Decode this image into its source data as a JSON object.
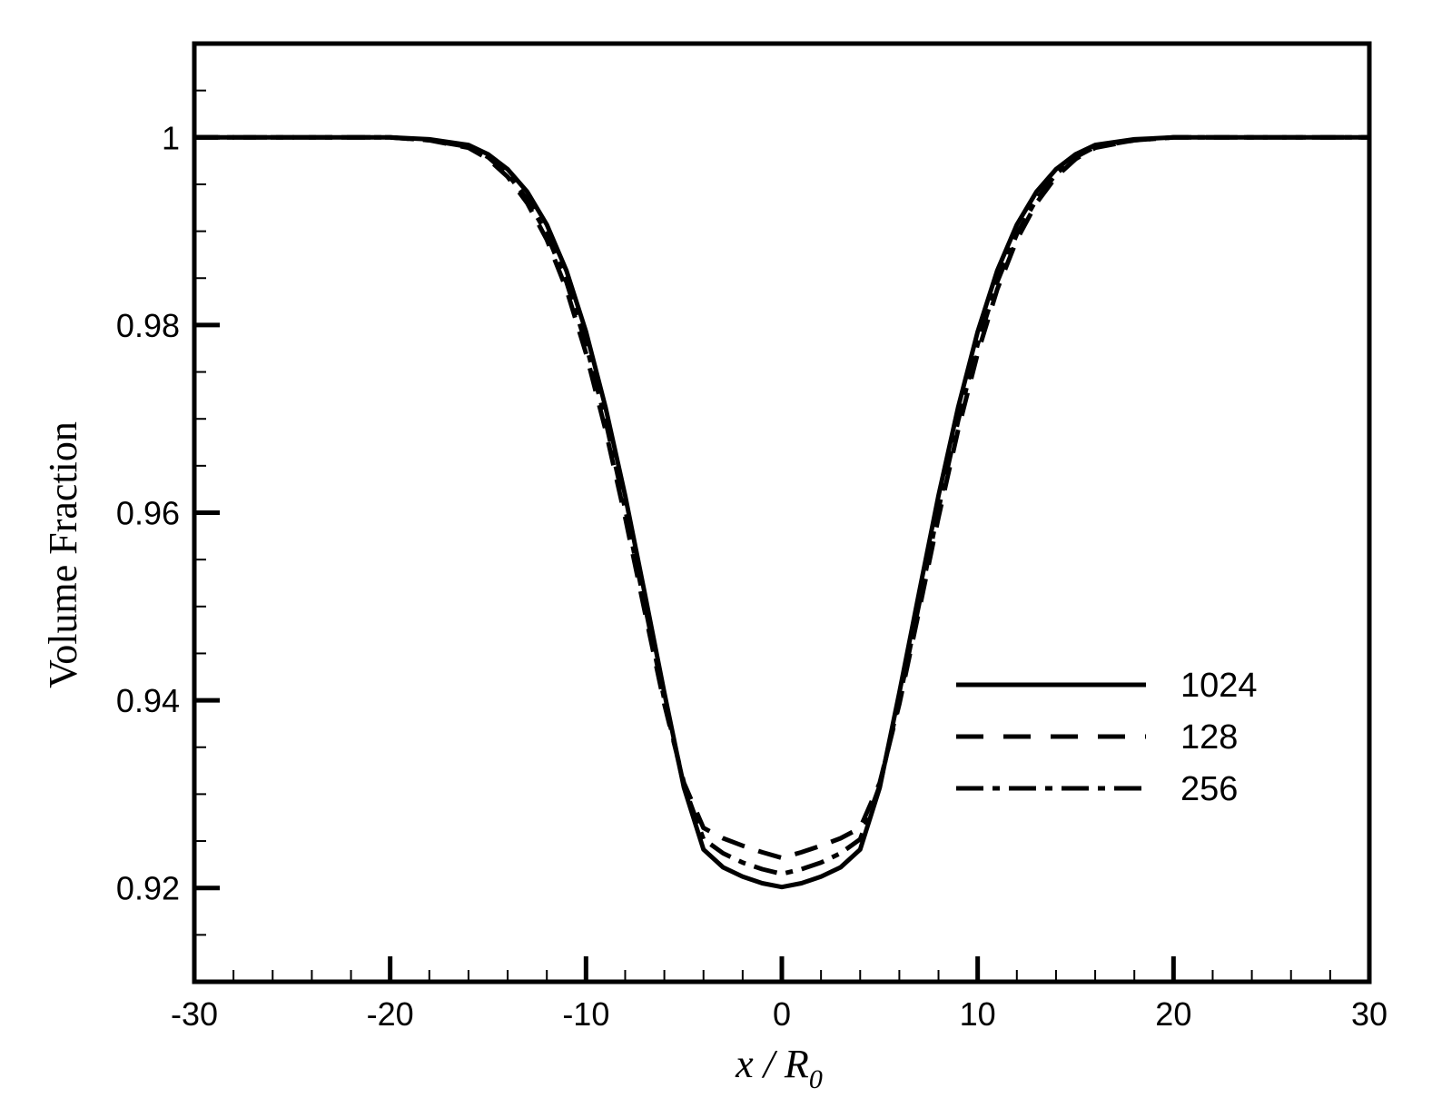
{
  "chart_data": {
    "type": "line",
    "title": "",
    "xlabel": {
      "main": "x / R",
      "subscript": "0"
    },
    "ylabel": "Volume Fraction",
    "xlim": [
      -30,
      30
    ],
    "ylim": [
      0.91,
      1.01
    ],
    "x_ticks": [
      -30,
      -20,
      -10,
      0,
      10,
      20,
      30
    ],
    "x_tick_labels": [
      "-30",
      "-20",
      "-10",
      "0",
      "10",
      "20",
      "30"
    ],
    "y_ticks": [
      0.92,
      0.94,
      0.96,
      0.98,
      1.0
    ],
    "y_tick_labels": [
      "0.92",
      "0.94",
      "0.96",
      "0.98",
      "1"
    ],
    "grid": false,
    "legend_position": "center-right",
    "series": [
      {
        "name": "1024",
        "style": "solid",
        "color": "#000000",
        "x": [
          -30,
          -20,
          -18,
          -16,
          -15,
          -14,
          -13,
          -12,
          -11,
          -10,
          -9,
          -8,
          -7,
          -6,
          -5,
          -4,
          -3,
          -2,
          -1,
          0,
          1,
          2,
          3,
          4,
          5,
          6,
          7,
          8,
          9,
          10,
          11,
          12,
          13,
          14,
          15,
          16,
          18,
          20,
          30
        ],
        "y": [
          1.0,
          1.0,
          0.9998,
          0.9992,
          0.9982,
          0.9966,
          0.9942,
          0.9907,
          0.9858,
          0.9793,
          0.9712,
          0.9618,
          0.9514,
          0.9408,
          0.9307,
          0.9241,
          0.9222,
          0.9212,
          0.9205,
          0.9201,
          0.9205,
          0.9212,
          0.9222,
          0.9241,
          0.9307,
          0.9408,
          0.9514,
          0.9618,
          0.9712,
          0.9793,
          0.9858,
          0.9907,
          0.9942,
          0.9966,
          0.9982,
          0.9992,
          0.9998,
          1.0,
          1.0
        ]
      },
      {
        "name": "128",
        "style": "dashed",
        "color": "#000000",
        "x": [
          -30,
          -20,
          -18,
          -16,
          -15,
          -14,
          -13,
          -12,
          -11,
          -10,
          -9,
          -8,
          -7,
          -6,
          -5,
          -4,
          -3,
          -2,
          -1,
          0,
          1,
          2,
          3,
          4,
          5,
          6,
          7,
          8,
          9,
          10,
          11,
          12,
          13,
          14,
          15,
          16,
          18,
          20,
          30
        ],
        "y": [
          1.0,
          1.0,
          0.9997,
          0.9989,
          0.9977,
          0.9958,
          0.993,
          0.9891,
          0.9838,
          0.977,
          0.9688,
          0.9595,
          0.9495,
          0.9396,
          0.9312,
          0.9264,
          0.9253,
          0.9245,
          0.9238,
          0.9232,
          0.9238,
          0.9245,
          0.9253,
          0.9264,
          0.9312,
          0.9396,
          0.9495,
          0.9595,
          0.9688,
          0.977,
          0.9838,
          0.9891,
          0.993,
          0.9958,
          0.9977,
          0.9989,
          0.9997,
          1.0,
          1.0
        ]
      },
      {
        "name": "256",
        "style": "dashdot",
        "color": "#000000",
        "x": [
          -30,
          -20,
          -18,
          -16,
          -15,
          -14,
          -13,
          -12,
          -11,
          -10,
          -9,
          -8,
          -7,
          -6,
          -5,
          -4,
          -3,
          -2,
          -1,
          0,
          1,
          2,
          3,
          4,
          5,
          6,
          7,
          8,
          9,
          10,
          11,
          12,
          13,
          14,
          15,
          16,
          18,
          20,
          30
        ],
        "y": [
          1.0,
          1.0,
          0.9997,
          0.999,
          0.9979,
          0.9961,
          0.9934,
          0.9897,
          0.9846,
          0.978,
          0.9698,
          0.9604,
          0.9502,
          0.9401,
          0.9309,
          0.9252,
          0.9237,
          0.9227,
          0.922,
          0.9215,
          0.922,
          0.9227,
          0.9237,
          0.9252,
          0.9309,
          0.9401,
          0.9502,
          0.9604,
          0.9698,
          0.978,
          0.9846,
          0.9897,
          0.9934,
          0.9961,
          0.9979,
          0.999,
          0.9997,
          1.0,
          1.0
        ]
      }
    ]
  }
}
